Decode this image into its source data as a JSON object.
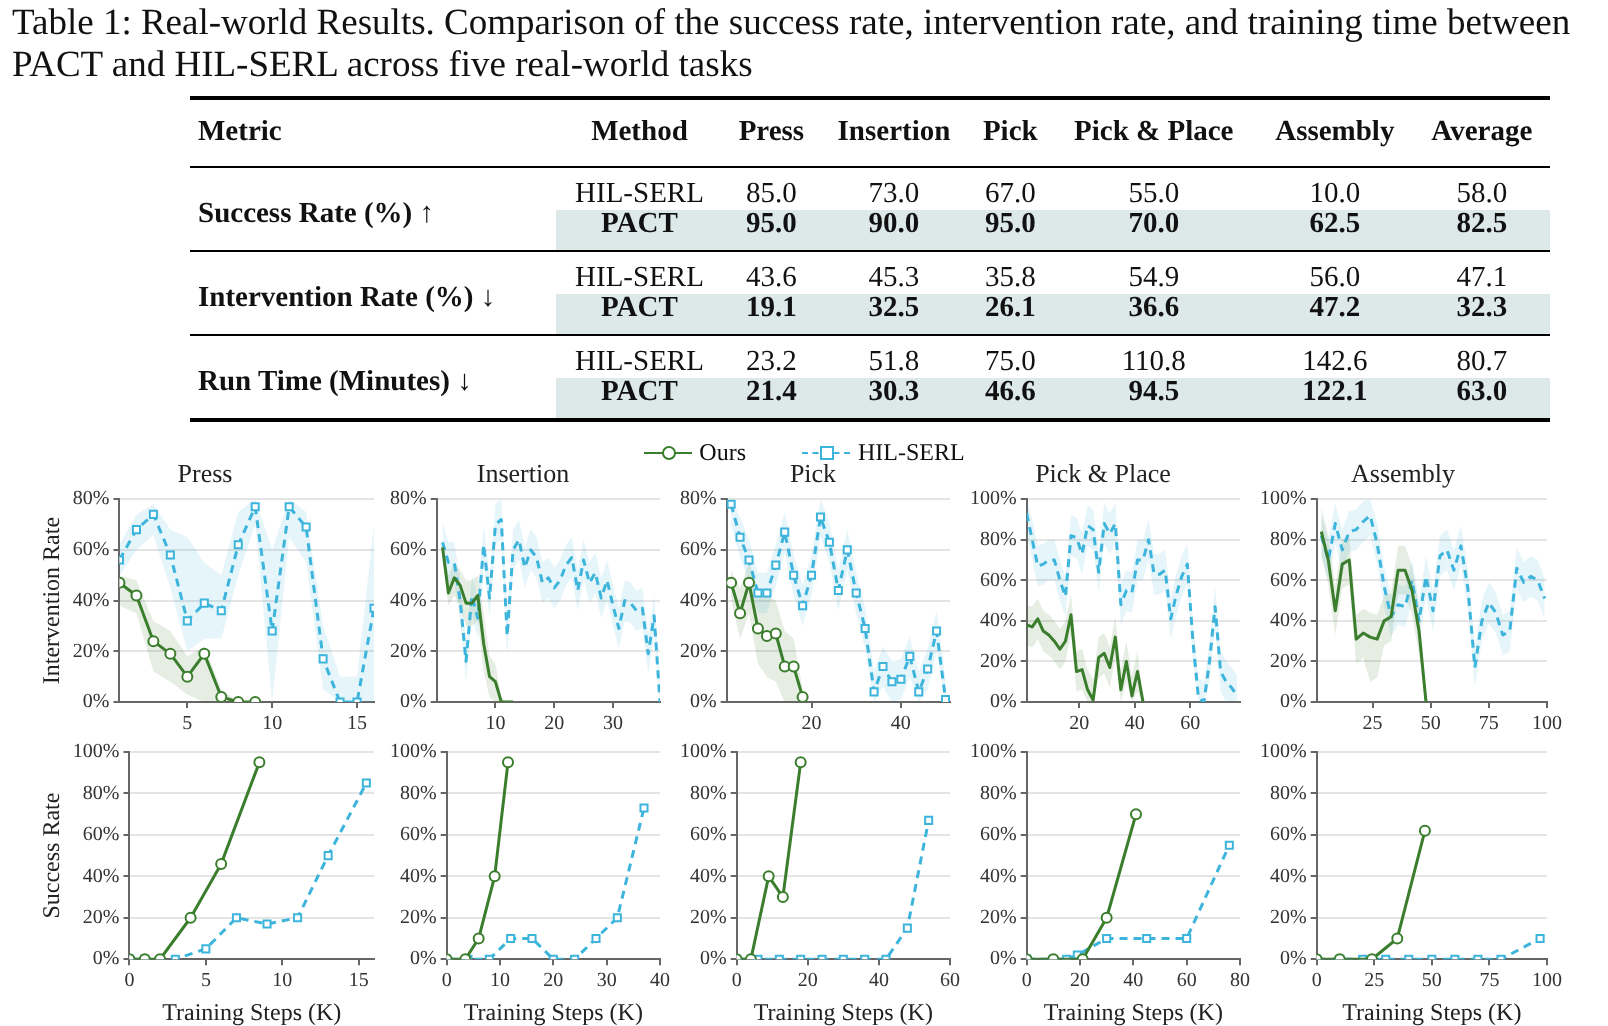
{
  "chart_data": [
    {
      "type": "heatmap",
      "title": "Table 1: Real-world Results. Comparison of the success rate, intervention rate, and training time between PACT and HIL-SERL across five real-world tasks",
      "ylabel": "Method",
      "annotations": [
        "Metric",
        "Success Rate (%) ↑",
        "Intervention Rate (%) ↓",
        "Run Time (Minutes) ↓"
      ],
      "categories": [
        "Press",
        "Insertion",
        "Pick",
        "Pick & Place",
        "Assembly",
        "Average"
      ],
      "y_categories": [
        "HIL-SERL",
        "PACT",
        "HIL-SERL",
        "PACT",
        "HIL-SERL",
        "PACT"
      ],
      "data_labels": true,
      "cell_labels": [
        [
          "85.0",
          "73.0",
          "67.0",
          "55.0",
          "10.0",
          "58.0"
        ],
        [
          "95.0",
          "90.0",
          "95.0",
          "70.0",
          "62.5",
          "82.5"
        ],
        [
          "43.6",
          "45.3",
          "35.8",
          "54.9",
          "56.0",
          "47.1"
        ],
        [
          "19.1",
          "32.5",
          "26.1",
          "36.6",
          "47.2",
          "32.3"
        ],
        [
          "23.2",
          "51.8",
          "75.0",
          "110.8",
          "142.6",
          "80.7"
        ],
        [
          "21.4",
          "30.3",
          "46.6",
          "94.5",
          "122.1",
          "63.0"
        ]
      ],
      "cells": [
        [
          85.0,
          73.0,
          67.0,
          55.0,
          10.0,
          58.0
        ],
        [
          95.0,
          90.0,
          95.0,
          70.0,
          62.5,
          82.5
        ],
        [
          43.6,
          45.3,
          35.8,
          54.9,
          56.0,
          47.1
        ],
        [
          19.1,
          32.5,
          26.1,
          36.6,
          47.2,
          32.3
        ],
        [
          23.2,
          51.8,
          75.0,
          110.8,
          142.6,
          80.7
        ],
        [
          21.4,
          30.3,
          46.6,
          94.5,
          122.1,
          63.0
        ]
      ]
    },
    {
      "type": "line",
      "title": "Press",
      "ylabel": "Intervention Rate",
      "legend": "top",
      "grid": "y",
      "xlim": [
        1,
        16
      ],
      "xticks": [
        5,
        10,
        15
      ],
      "ylim": [
        0,
        80
      ],
      "yticks": [
        {
          "value": 0,
          "label": "0%"
        },
        {
          "value": 20,
          "label": "20%"
        },
        {
          "value": 40,
          "label": "40%"
        },
        {
          "value": 60,
          "label": "60%"
        },
        {
          "value": 80,
          "label": "80%"
        }
      ],
      "series": [
        {
          "name": "Ours",
          "color": "#3a7d2c",
          "marker": "circle",
          "line_style": "solid",
          "x": [
            1,
            2,
            3,
            4,
            5,
            6,
            7,
            8,
            9
          ],
          "values": [
            47,
            42,
            24,
            19,
            10,
            19,
            2,
            0,
            0
          ],
          "lower": [
            38,
            35,
            12,
            8,
            3,
            0,
            0,
            0,
            0
          ],
          "upper": [
            50,
            48,
            32,
            28,
            18,
            22,
            5,
            0,
            0
          ]
        },
        {
          "name": "HIL-SERL",
          "color": "#3cb4dc",
          "marker": "square",
          "line_style": "dashed",
          "x": [
            1,
            2,
            3,
            4,
            5,
            6,
            7,
            8,
            9,
            10,
            11,
            12,
            13,
            14,
            15,
            16
          ],
          "values": [
            56,
            68,
            74,
            58,
            32,
            39,
            36,
            62,
            77,
            28,
            77,
            69,
            17,
            0,
            0,
            37
          ],
          "lower": [
            50,
            60,
            66,
            45,
            20,
            25,
            25,
            50,
            70,
            0,
            65,
            55,
            5,
            0,
            0,
            0
          ],
          "upper": [
            62,
            74,
            78,
            68,
            65,
            55,
            50,
            75,
            80,
            60,
            80,
            75,
            30,
            10,
            10,
            70
          ]
        }
      ]
    },
    {
      "type": "line",
      "title": "Insertion",
      "grid": "y",
      "xlim": [
        0,
        38
      ],
      "xticks": [
        10,
        20,
        30
      ],
      "ylim": [
        0,
        80
      ],
      "yticks": [
        {
          "value": 0,
          "label": "0%"
        },
        {
          "value": 20,
          "label": "20%"
        },
        {
          "value": 40,
          "label": "40%"
        },
        {
          "value": 60,
          "label": "60%"
        },
        {
          "value": 80,
          "label": "80%"
        }
      ],
      "series": [
        {
          "color": "#3a7d2c",
          "marker": "none",
          "line_style": "solid",
          "x": [
            1,
            2,
            3,
            4,
            5,
            6,
            7,
            8,
            9,
            10,
            11,
            12,
            13
          ],
          "values": [
            61,
            43,
            49,
            46,
            39,
            39,
            42,
            23,
            10,
            8,
            0,
            0,
            0
          ],
          "lower": [
            58,
            38,
            42,
            38,
            30,
            30,
            32,
            12,
            2,
            0,
            0,
            0,
            0
          ],
          "upper": [
            64,
            50,
            55,
            52,
            48,
            48,
            50,
            35,
            18,
            15,
            2,
            0,
            0
          ]
        },
        {
          "color": "#3cb4dc",
          "marker": "none",
          "line_style": "dashed",
          "x": [
            1,
            2,
            3,
            4,
            5,
            6,
            7,
            8,
            9,
            10,
            11,
            12,
            13,
            14,
            15,
            16,
            17,
            18,
            19,
            20,
            21,
            22,
            23,
            24,
            25,
            26,
            27,
            28,
            29,
            30,
            31,
            32,
            33,
            34,
            35,
            36,
            37,
            38
          ],
          "values": [
            63,
            55,
            55,
            40,
            16,
            42,
            33,
            62,
            41,
            70,
            72,
            26,
            60,
            64,
            53,
            60,
            57,
            47,
            49,
            45,
            48,
            54,
            57,
            44,
            56,
            47,
            51,
            41,
            48,
            38,
            29,
            40,
            39,
            36,
            37,
            19,
            34,
            0
          ],
          "lower": [
            55,
            47,
            47,
            32,
            8,
            34,
            25,
            54,
            33,
            62,
            64,
            18,
            52,
            56,
            45,
            52,
            49,
            39,
            41,
            37,
            40,
            46,
            49,
            36,
            48,
            39,
            43,
            33,
            40,
            30,
            21,
            32,
            31,
            28,
            29,
            11,
            26,
            0
          ],
          "upper": [
            71,
            63,
            63,
            48,
            24,
            50,
            41,
            70,
            49,
            78,
            80,
            34,
            68,
            72,
            61,
            68,
            65,
            55,
            57,
            53,
            56,
            62,
            65,
            52,
            64,
            55,
            59,
            49,
            56,
            46,
            37,
            48,
            47,
            44,
            45,
            27,
            42,
            8
          ]
        }
      ]
    },
    {
      "type": "line",
      "title": "Pick",
      "grid": "y",
      "xlim": [
        1,
        51
      ],
      "xticks": [
        20,
        40
      ],
      "ylim": [
        0,
        80
      ],
      "yticks": [
        {
          "value": 0,
          "label": "0%"
        },
        {
          "value": 20,
          "label": "20%"
        },
        {
          "value": 40,
          "label": "40%"
        },
        {
          "value": 60,
          "label": "60%"
        },
        {
          "value": 80,
          "label": "80%"
        }
      ],
      "series": [
        {
          "color": "#3a7d2c",
          "marker": "circle",
          "line_style": "solid",
          "x": [
            2,
            4,
            6,
            8,
            10,
            12,
            14,
            16,
            18
          ],
          "values": [
            47,
            35,
            47,
            29,
            26,
            27,
            14,
            14,
            2
          ],
          "lower": [
            40,
            25,
            35,
            15,
            10,
            8,
            0,
            0,
            0
          ],
          "upper": [
            52,
            45,
            55,
            45,
            42,
            40,
            28,
            25,
            5
          ]
        },
        {
          "color": "#3cb4dc",
          "marker": "square",
          "line_style": "dashed",
          "x": [
            2,
            4,
            6,
            8,
            10,
            12,
            14,
            16,
            18,
            20,
            22,
            24,
            26,
            28,
            30,
            32,
            34,
            36,
            38,
            40,
            42,
            44,
            46,
            48,
            50
          ],
          "values": [
            78,
            65,
            56,
            43,
            43,
            54,
            67,
            50,
            38,
            50,
            73,
            63,
            44,
            60,
            43,
            29,
            4,
            14,
            8,
            9,
            18,
            4,
            13,
            28,
            1
          ],
          "lower": [
            70,
            57,
            48,
            35,
            35,
            46,
            59,
            42,
            30,
            42,
            65,
            55,
            36,
            52,
            35,
            21,
            0,
            6,
            0,
            1,
            10,
            0,
            5,
            20,
            0
          ],
          "upper": [
            80,
            73,
            64,
            51,
            51,
            62,
            75,
            58,
            46,
            58,
            80,
            71,
            52,
            68,
            51,
            37,
            12,
            22,
            16,
            17,
            26,
            12,
            21,
            36,
            9
          ]
        }
      ]
    },
    {
      "type": "line",
      "title": "Pick & Place",
      "grid": "y",
      "xlim": [
        1,
        78
      ],
      "xticks": [
        20,
        40,
        60
      ],
      "ylim": [
        0,
        100
      ],
      "yticks": [
        {
          "value": 0,
          "label": "0%"
        },
        {
          "value": 20,
          "label": "20%"
        },
        {
          "value": 40,
          "label": "40%"
        },
        {
          "value": 60,
          "label": "60%"
        },
        {
          "value": 80,
          "label": "80%"
        },
        {
          "value": 100,
          "label": "100%"
        }
      ],
      "series": [
        {
          "color": "#3a7d2c",
          "marker": "none",
          "line_style": "solid",
          "x": [
            1,
            3,
            5,
            7,
            9,
            11,
            13,
            15,
            17,
            19,
            21,
            23,
            25,
            27,
            29,
            31,
            33,
            35,
            37,
            39,
            41,
            43
          ],
          "values": [
            38,
            37,
            41,
            35,
            33,
            30,
            26,
            30,
            43,
            15,
            16,
            6,
            1,
            22,
            24,
            17,
            32,
            6,
            20,
            3,
            15,
            0
          ],
          "lower": [
            28,
            27,
            31,
            25,
            23,
            20,
            16,
            20,
            33,
            5,
            6,
            0,
            0,
            12,
            14,
            7,
            22,
            0,
            10,
            0,
            5,
            0
          ],
          "upper": [
            48,
            47,
            51,
            45,
            43,
            40,
            36,
            40,
            53,
            25,
            26,
            16,
            11,
            32,
            34,
            27,
            42,
            16,
            30,
            13,
            25,
            2
          ]
        },
        {
          "color": "#3cb4dc",
          "marker": "none",
          "line_style": "dashed",
          "x": [
            1,
            3,
            5,
            7,
            9,
            11,
            13,
            15,
            17,
            19,
            21,
            23,
            25,
            27,
            29,
            31,
            33,
            35,
            37,
            39,
            41,
            43,
            45,
            47,
            49,
            51,
            53,
            55,
            57,
            59,
            61,
            63,
            65,
            67,
            69,
            71,
            73,
            75,
            77
          ],
          "values": [
            93,
            80,
            67,
            68,
            70,
            70,
            60,
            52,
            82,
            81,
            73,
            87,
            85,
            64,
            88,
            83,
            88,
            48,
            55,
            54,
            70,
            70,
            80,
            63,
            63,
            65,
            41,
            53,
            62,
            68,
            30,
            2,
            0,
            20,
            47,
            15,
            10,
            7,
            3
          ],
          "lower": [
            83,
            70,
            57,
            58,
            60,
            60,
            50,
            42,
            72,
            71,
            63,
            77,
            75,
            54,
            78,
            73,
            78,
            38,
            45,
            44,
            60,
            60,
            70,
            53,
            53,
            55,
            31,
            43,
            52,
            58,
            20,
            0,
            0,
            10,
            37,
            5,
            0,
            0,
            0
          ],
          "upper": [
            100,
            90,
            77,
            78,
            80,
            80,
            70,
            62,
            92,
            91,
            83,
            97,
            95,
            74,
            98,
            93,
            98,
            58,
            65,
            64,
            80,
            80,
            90,
            73,
            73,
            75,
            51,
            63,
            72,
            78,
            40,
            12,
            10,
            30,
            57,
            25,
            20,
            17,
            13
          ]
        }
      ]
    },
    {
      "type": "line",
      "title": "Assembly",
      "grid": "y",
      "xlim": [
        1,
        100
      ],
      "xticks": [
        25,
        50,
        75,
        100
      ],
      "ylim": [
        0,
        100
      ],
      "yticks": [
        {
          "value": 0,
          "label": "0%"
        },
        {
          "value": 20,
          "label": "20%"
        },
        {
          "value": 40,
          "label": "40%"
        },
        {
          "value": 60,
          "label": "60%"
        },
        {
          "value": 80,
          "label": "80%"
        },
        {
          "value": 100,
          "label": "100%"
        }
      ],
      "series": [
        {
          "color": "#3a7d2c",
          "marker": "none",
          "line_style": "solid",
          "x": [
            3,
            6,
            9,
            12,
            15,
            18,
            21,
            24,
            27,
            30,
            33,
            36,
            39,
            42,
            45,
            48
          ],
          "values": [
            84,
            70,
            45,
            68,
            70,
            31,
            34,
            32,
            31,
            40,
            42,
            65,
            65,
            55,
            35,
            0
          ],
          "lower": [
            72,
            58,
            33,
            56,
            58,
            19,
            22,
            10,
            12,
            28,
            30,
            53,
            53,
            43,
            23,
            0
          ],
          "upper": [
            96,
            82,
            57,
            80,
            82,
            43,
            46,
            44,
            43,
            52,
            54,
            77,
            77,
            67,
            47,
            2
          ]
        },
        {
          "color": "#3cb4dc",
          "marker": "none",
          "line_style": "dashed",
          "x": [
            3,
            6,
            9,
            12,
            15,
            18,
            21,
            24,
            27,
            30,
            33,
            36,
            39,
            42,
            45,
            48,
            51,
            54,
            57,
            60,
            63,
            66,
            69,
            72,
            75,
            78,
            81,
            84,
            87,
            90,
            93,
            96,
            99
          ],
          "values": [
            82,
            70,
            88,
            75,
            84,
            85,
            89,
            92,
            78,
            57,
            42,
            48,
            47,
            60,
            40,
            62,
            45,
            72,
            75,
            65,
            77,
            56,
            17,
            40,
            49,
            44,
            33,
            35,
            66,
            59,
            62,
            60,
            51
          ],
          "lower": [
            72,
            60,
            78,
            65,
            74,
            75,
            79,
            82,
            68,
            47,
            32,
            38,
            37,
            50,
            30,
            52,
            35,
            62,
            65,
            55,
            67,
            46,
            7,
            30,
            39,
            34,
            23,
            25,
            56,
            49,
            52,
            50,
            41
          ],
          "upper": [
            92,
            80,
            98,
            85,
            94,
            95,
            99,
            100,
            88,
            67,
            52,
            58,
            57,
            70,
            50,
            72,
            55,
            82,
            85,
            75,
            87,
            66,
            27,
            50,
            59,
            54,
            43,
            45,
            76,
            69,
            72,
            70,
            61
          ]
        }
      ]
    },
    {
      "type": "line",
      "ylabel": "Success Rate",
      "xlabel": "Training Steps (K)",
      "grid": "y",
      "xlim": [
        0,
        16
      ],
      "xticks": [
        0,
        5,
        10,
        15
      ],
      "ylim": [
        0,
        100
      ],
      "yticks": [
        {
          "value": 0,
          "label": "0%"
        },
        {
          "value": 20,
          "label": "20%"
        },
        {
          "value": 40,
          "label": "40%"
        },
        {
          "value": 60,
          "label": "60%"
        },
        {
          "value": 80,
          "label": "80%"
        },
        {
          "value": 100,
          "label": "100%"
        }
      ],
      "series": [
        {
          "color": "#3a7d2c",
          "marker": "circle",
          "line_style": "solid",
          "x": [
            0,
            1,
            2,
            4,
            6,
            8.5
          ],
          "values": [
            0,
            0,
            0,
            20,
            46,
            95
          ]
        },
        {
          "color": "#3cb4dc",
          "marker": "square",
          "line_style": "dashed",
          "x": [
            0,
            1,
            3,
            5,
            7,
            9,
            11,
            13,
            15.5
          ],
          "values": [
            0,
            0,
            0,
            5,
            20,
            17,
            20,
            50,
            85
          ]
        }
      ]
    },
    {
      "type": "line",
      "xlabel": "Training Steps (K)",
      "grid": "y",
      "xlim": [
        0,
        40
      ],
      "xticks": [
        0,
        10,
        20,
        30,
        40
      ],
      "ylim": [
        0,
        100
      ],
      "yticks": [
        {
          "value": 0,
          "label": "0%"
        },
        {
          "value": 20,
          "label": "20%"
        },
        {
          "value": 40,
          "label": "40%"
        },
        {
          "value": 60,
          "label": "60%"
        },
        {
          "value": 80,
          "label": "80%"
        },
        {
          "value": 100,
          "label": "100%"
        }
      ],
      "series": [
        {
          "color": "#3a7d2c",
          "marker": "circle",
          "line_style": "solid",
          "x": [
            0,
            3.5,
            6,
            9,
            11.5
          ],
          "values": [
            0,
            0,
            10,
            40,
            95
          ]
        },
        {
          "color": "#3cb4dc",
          "marker": "square",
          "line_style": "dashed",
          "x": [
            0,
            4,
            8,
            12,
            16,
            20,
            24,
            28,
            32,
            37
          ],
          "values": [
            0,
            0,
            0,
            10,
            10,
            0,
            0,
            10,
            20,
            73
          ]
        }
      ]
    },
    {
      "type": "line",
      "xlabel": "Training Steps (K)",
      "grid": "y",
      "xlim": [
        0,
        60
      ],
      "xticks": [
        0,
        20,
        40,
        60
      ],
      "ylim": [
        0,
        100
      ],
      "yticks": [
        {
          "value": 0,
          "label": "0%"
        },
        {
          "value": 20,
          "label": "20%"
        },
        {
          "value": 40,
          "label": "40%"
        },
        {
          "value": 60,
          "label": "60%"
        },
        {
          "value": 80,
          "label": "80%"
        },
        {
          "value": 100,
          "label": "100%"
        }
      ],
      "series": [
        {
          "color": "#3a7d2c",
          "marker": "circle",
          "line_style": "solid",
          "x": [
            0,
            4,
            9,
            13,
            18
          ],
          "values": [
            0,
            0,
            40,
            30,
            95
          ]
        },
        {
          "color": "#3cb4dc",
          "marker": "square",
          "line_style": "dashed",
          "x": [
            0,
            6,
            12,
            18,
            24,
            30,
            36,
            42,
            48,
            54
          ],
          "values": [
            0,
            0,
            0,
            0,
            0,
            0,
            0,
            0,
            15,
            67
          ]
        }
      ]
    },
    {
      "type": "line",
      "xlabel": "Training Steps (K)",
      "grid": "y",
      "xlim": [
        0,
        80
      ],
      "xticks": [
        0,
        20,
        40,
        60,
        80
      ],
      "ylim": [
        0,
        100
      ],
      "yticks": [
        {
          "value": 0,
          "label": "0%"
        },
        {
          "value": 20,
          "label": "20%"
        },
        {
          "value": 40,
          "label": "40%"
        },
        {
          "value": 60,
          "label": "60%"
        },
        {
          "value": 80,
          "label": "80%"
        },
        {
          "value": 100,
          "label": "100%"
        }
      ],
      "series": [
        {
          "color": "#3a7d2c",
          "marker": "circle",
          "line_style": "solid",
          "x": [
            0,
            10,
            21,
            30,
            41
          ],
          "values": [
            0,
            0,
            0,
            20,
            70
          ]
        },
        {
          "color": "#3cb4dc",
          "marker": "square",
          "line_style": "dashed",
          "x": [
            0,
            10,
            15,
            19,
            30,
            45,
            60,
            76
          ],
          "values": [
            0,
            0,
            0,
            2,
            10,
            10,
            10,
            55
          ]
        }
      ]
    },
    {
      "type": "line",
      "xlabel": "Training Steps (K)",
      "grid": "y",
      "xlim": [
        0,
        100
      ],
      "xticks": [
        0,
        25,
        50,
        75,
        100
      ],
      "ylim": [
        0,
        100
      ],
      "yticks": [
        {
          "value": 0,
          "label": "0%"
        },
        {
          "value": 20,
          "label": "20%"
        },
        {
          "value": 40,
          "label": "40%"
        },
        {
          "value": 60,
          "label": "60%"
        },
        {
          "value": 80,
          "label": "80%"
        },
        {
          "value": 100,
          "label": "100%"
        }
      ],
      "series": [
        {
          "color": "#3a7d2c",
          "marker": "circle",
          "line_style": "solid",
          "x": [
            0,
            10,
            24,
            35,
            47
          ],
          "values": [
            0,
            0,
            0,
            10,
            62
          ]
        },
        {
          "color": "#3cb4dc",
          "marker": "square",
          "line_style": "dashed",
          "x": [
            0,
            10,
            20,
            30,
            40,
            50,
            60,
            70,
            80,
            97
          ],
          "values": [
            0,
            0,
            0,
            0,
            0,
            0,
            0,
            0,
            0,
            10
          ]
        }
      ]
    }
  ]
}
